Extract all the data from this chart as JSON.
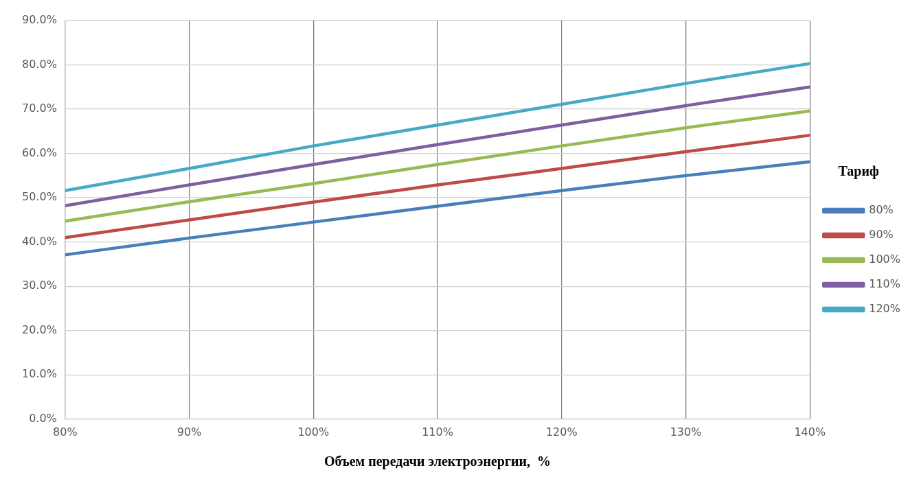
{
  "chart_data": {
    "type": "line",
    "xlabel": "Объем передачи электроэнергии,  %",
    "legend_title": "Тариф",
    "legend": "right",
    "grid": true,
    "marker": "none",
    "line_style": "solid",
    "x": [
      80,
      90,
      100,
      110,
      120,
      130,
      140
    ],
    "xlim": [
      80,
      140
    ],
    "xticks": [
      {
        "value": 80,
        "label": "80%"
      },
      {
        "value": 90,
        "label": "90%"
      },
      {
        "value": 100,
        "label": "100%"
      },
      {
        "value": 110,
        "label": "110%"
      },
      {
        "value": 120,
        "label": "120%"
      },
      {
        "value": 130,
        "label": "130%"
      },
      {
        "value": 140,
        "label": "140%"
      }
    ],
    "ylim": [
      0,
      90
    ],
    "yticks": [
      {
        "value": 0,
        "label": "0.0%"
      },
      {
        "value": 10,
        "label": "10.0%"
      },
      {
        "value": 20,
        "label": "20.0%"
      },
      {
        "value": 30,
        "label": "30.0%"
      },
      {
        "value": 40,
        "label": "40.0%"
      },
      {
        "value": 50,
        "label": "50.0%"
      },
      {
        "value": 60,
        "label": "60.0%"
      },
      {
        "value": 70,
        "label": "70.0%"
      },
      {
        "value": 80,
        "label": "80.0%"
      },
      {
        "value": 90,
        "label": "90.0%"
      }
    ],
    "series": [
      {
        "name": "80%",
        "color": "#4a7ebb",
        "values": [
          37.1,
          40.9,
          44.5,
          48.1,
          51.6,
          55.0,
          58.1
        ]
      },
      {
        "name": "90%",
        "color": "#be4b48",
        "values": [
          41.0,
          45.0,
          49.0,
          52.9,
          56.6,
          60.4,
          64.1
        ]
      },
      {
        "name": "100%",
        "color": "#98b954",
        "values": [
          44.7,
          49.1,
          53.2,
          57.5,
          61.7,
          65.8,
          69.6
        ]
      },
      {
        "name": "110%",
        "color": "#7d60a0",
        "values": [
          48.2,
          52.9,
          57.5,
          62.0,
          66.4,
          70.8,
          75.0
        ]
      },
      {
        "name": "120%",
        "color": "#46aac5",
        "values": [
          51.6,
          56.6,
          61.7,
          66.4,
          71.1,
          75.8,
          80.3
        ]
      }
    ]
  }
}
